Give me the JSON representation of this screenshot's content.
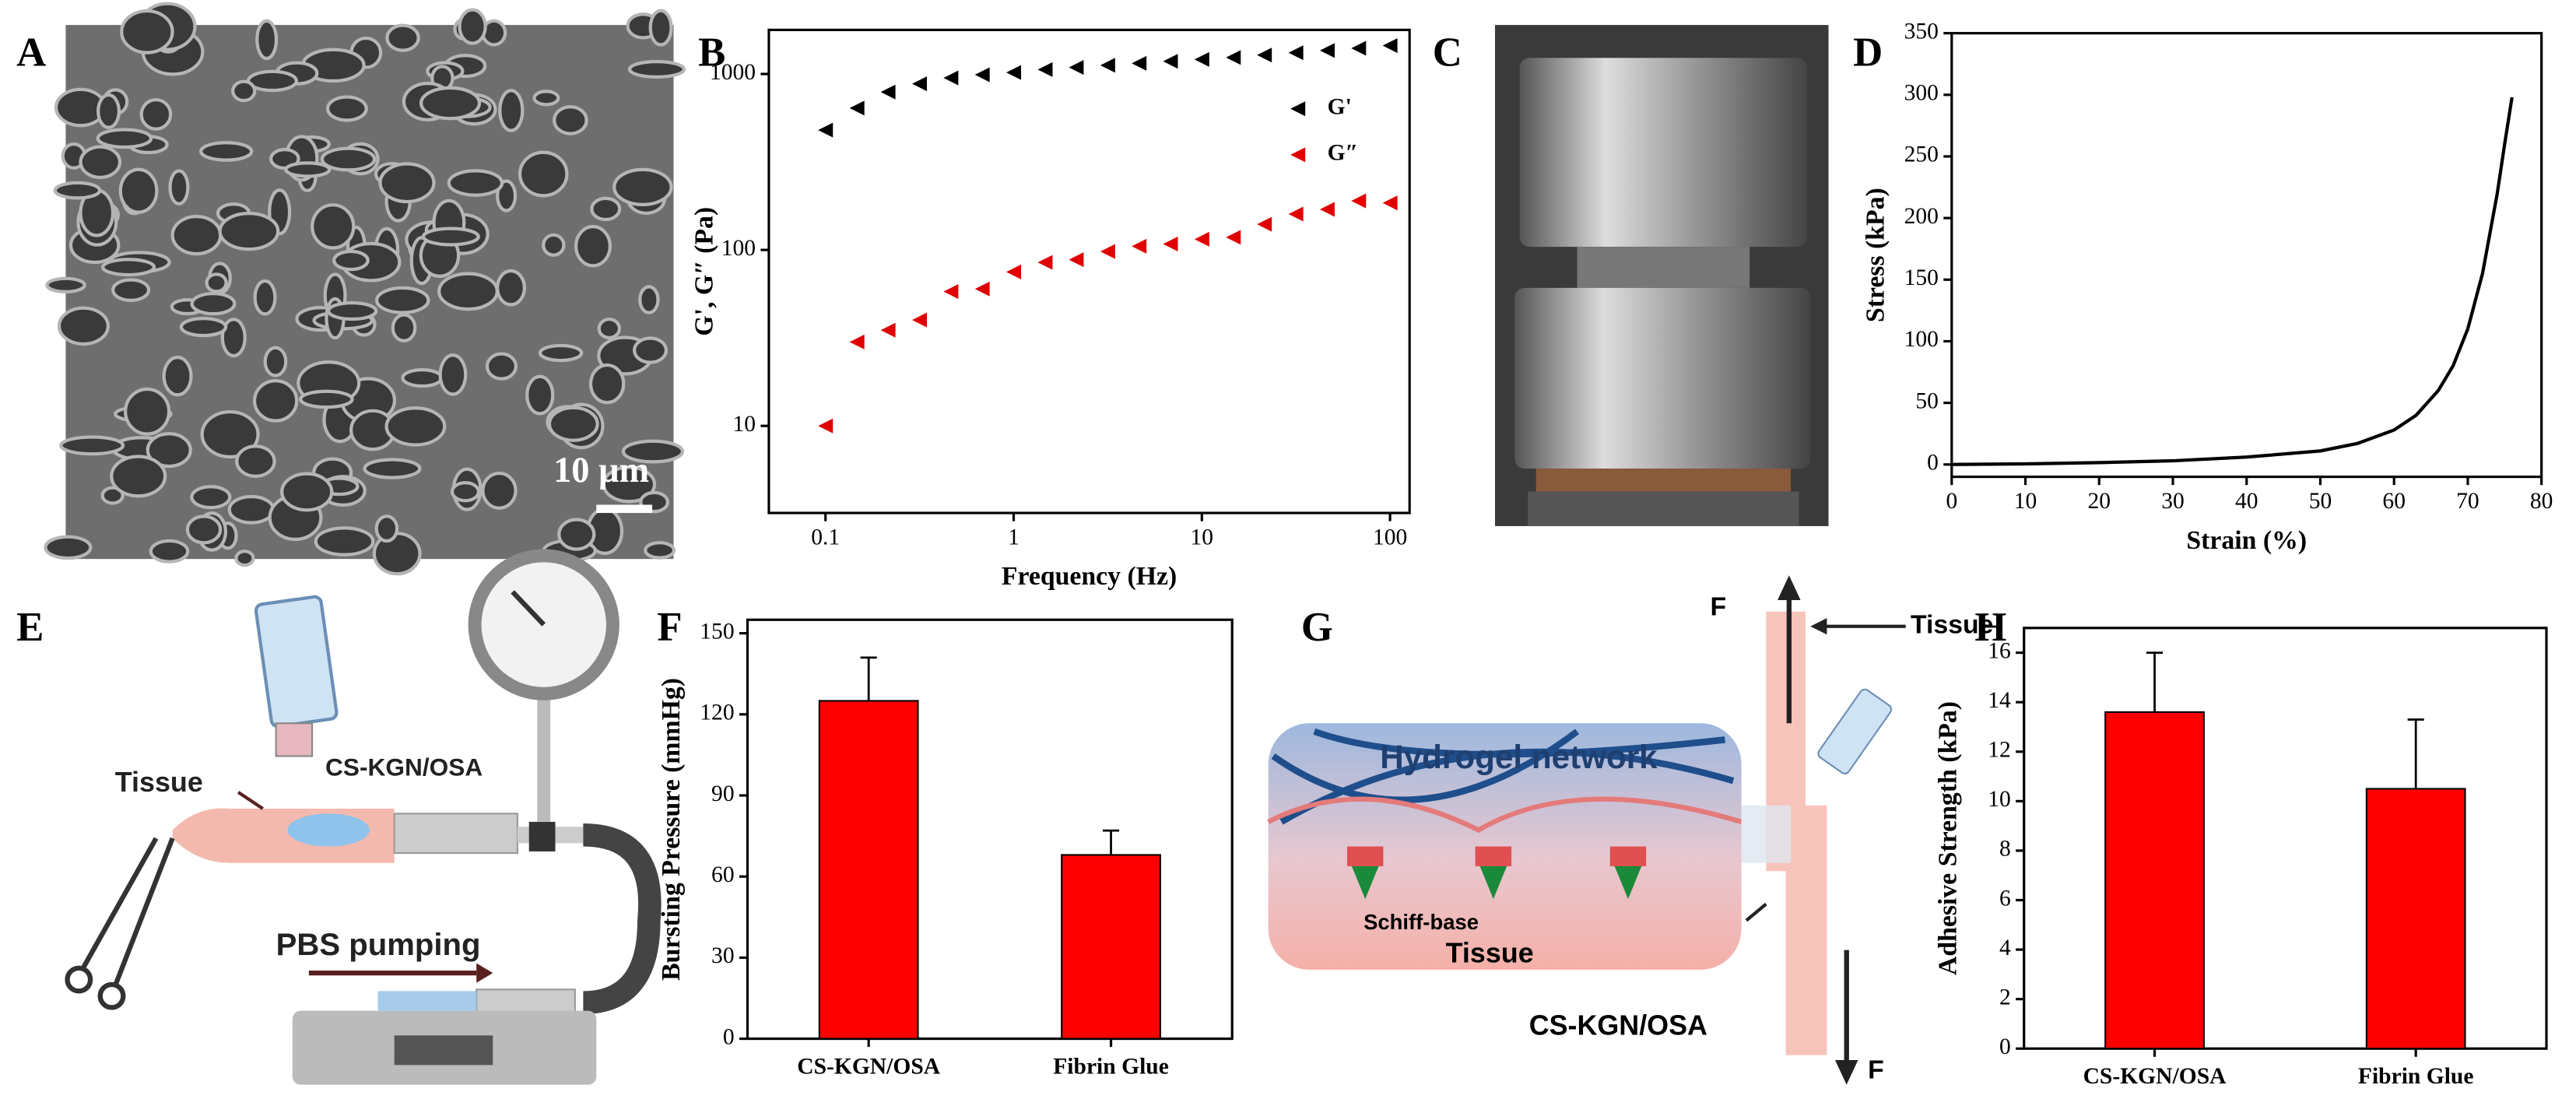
{
  "panels": [
    "A",
    "B",
    "C",
    "D",
    "E",
    "F",
    "G",
    "H"
  ],
  "sem": {
    "scale_bar": "10 μm"
  },
  "diagram_e": {
    "tissue": "Tissue",
    "gel": "CS-KGN/OSA",
    "pump": "PBS pumping"
  },
  "diagram_g": {
    "force_top": "F",
    "tissue_strip": "Tissue",
    "network": "Hydrogel network",
    "bond": "Schiff-base",
    "tissue": "Tissue",
    "gel": "CS-KGN/OSA",
    "force_bottom": "F"
  },
  "chart_data": [
    {
      "type": "scatter",
      "x_label": "Frequency (Hz)",
      "y_label": "G', G″ (Pa)",
      "xscale": "log",
      "yscale": "log",
      "x": [
        0.1,
        0.147,
        0.215,
        0.316,
        0.464,
        0.681,
        1,
        1.47,
        2.15,
        3.16,
        4.64,
        6.81,
        10,
        14.7,
        21.5,
        31.6,
        46.4,
        68.1,
        100
      ],
      "series": [
        {
          "name": "G'",
          "color": "#000000",
          "values": [
            480,
            640,
            790,
            880,
            950,
            990,
            1020,
            1060,
            1090,
            1120,
            1150,
            1180,
            1210,
            1240,
            1280,
            1320,
            1360,
            1400,
            1450
          ]
        },
        {
          "name": "G″",
          "color": "#e00000",
          "values": [
            10,
            30,
            35,
            40,
            58,
            60,
            75,
            85,
            88,
            98,
            105,
            108,
            115,
            118,
            140,
            160,
            170,
            190,
            185
          ]
        }
      ],
      "xlim": [
        0.05,
        127
      ],
      "xticks": [
        0.1,
        1,
        10,
        100
      ],
      "ylim": [
        3.2,
        1780
      ],
      "yticks": [
        10,
        100,
        1000
      ],
      "legend": "upper right"
    },
    {
      "type": "line",
      "x_label": "Strain (%)",
      "y_label": "Stress (kPa)",
      "color": "#000000",
      "x": [
        0,
        10,
        20,
        30,
        40,
        50,
        55,
        60,
        63,
        66,
        68,
        70,
        72,
        74,
        75,
        76
      ],
      "values": [
        0,
        0.5,
        1.5,
        3,
        6,
        11,
        17,
        28,
        40,
        60,
        80,
        110,
        155,
        220,
        260,
        298
      ],
      "xlim": [
        0,
        80
      ],
      "xticks": [
        0,
        10,
        20,
        30,
        40,
        50,
        60,
        70,
        80
      ],
      "ylim": [
        -10,
        350
      ],
      "yticks": [
        0,
        50,
        100,
        150,
        200,
        250,
        300,
        350
      ]
    },
    {
      "type": "bar",
      "y_label": "Bursting Pressure (mmHg)",
      "color": "#ff0000",
      "categories": [
        "CS-KGN/OSA",
        "Fibrin Glue"
      ],
      "values": [
        125,
        68
      ],
      "errors": [
        16,
        9
      ],
      "ylim": [
        0,
        155
      ],
      "yticks": [
        0,
        30,
        60,
        90,
        120,
        150
      ]
    },
    {
      "type": "bar",
      "y_label": "Adhesive Strength (kPa)",
      "color": "#ff0000",
      "categories": [
        "CS-KGN/OSA",
        "Fibrin Glue"
      ],
      "values": [
        13.6,
        10.5
      ],
      "errors": [
        2.4,
        2.8
      ],
      "ylim": [
        0,
        17
      ],
      "yticks": [
        0,
        2,
        4,
        6,
        8,
        10,
        12,
        14,
        16
      ]
    }
  ]
}
